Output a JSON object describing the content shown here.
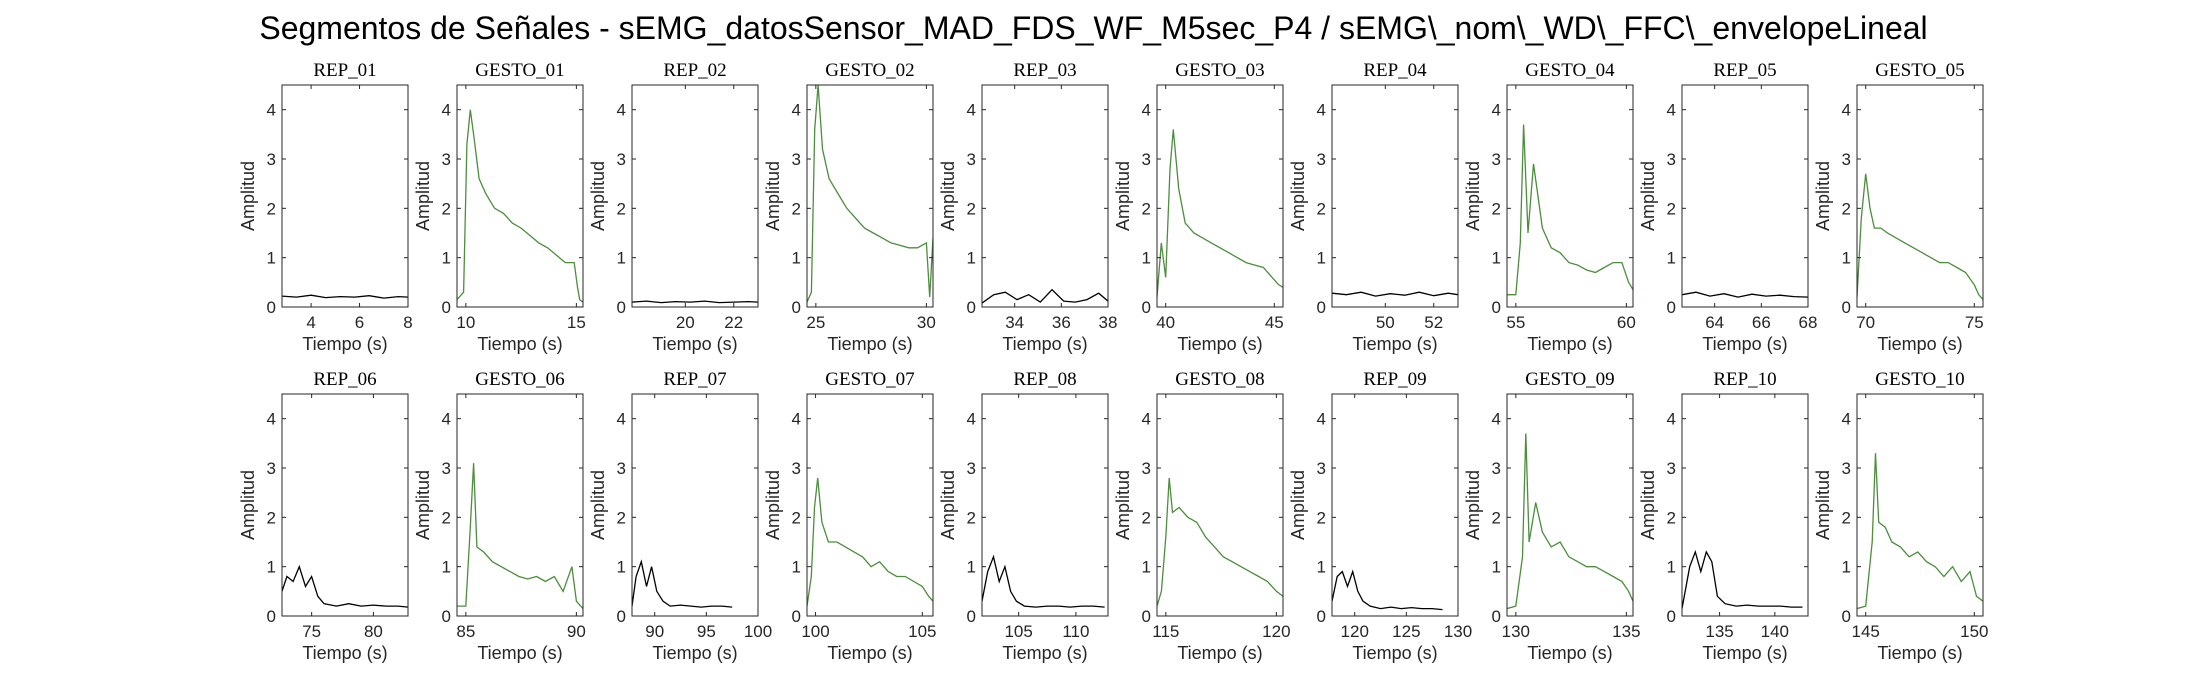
{
  "figure": {
    "title": "Segmentos de Señales - sEMG_datosSensor_MAD_FDS_WF_M5sec_P4 / sEMG\\_nom\\_WD\\_FFC\\_envelopeLineal"
  },
  "colors": {
    "rep": "#000000",
    "gesto": "#4b8e3b",
    "axis": "#262626"
  },
  "chart_data": [
    {
      "type": "line",
      "title": "REP_01",
      "xlabel": "Tiempo (s)",
      "ylabel": "Amplitud",
      "xlim": [
        2.8,
        8
      ],
      "ylim": [
        0,
        4.5
      ],
      "xticks": [
        4,
        6,
        8
      ],
      "yticks": [
        0,
        1,
        2,
        3,
        4
      ],
      "color_key": "rep",
      "x": [
        2.8,
        3.4,
        4.0,
        4.6,
        5.2,
        5.8,
        6.4,
        7.0,
        7.6,
        8.0
      ],
      "y": [
        0.22,
        0.2,
        0.24,
        0.19,
        0.21,
        0.2,
        0.23,
        0.18,
        0.21,
        0.2
      ]
    },
    {
      "type": "line",
      "title": "GESTO_01",
      "xlabel": "Tiempo (s)",
      "ylabel": "Amplitud",
      "xlim": [
        9.6,
        15.3
      ],
      "ylim": [
        0,
        4.5
      ],
      "xticks": [
        10,
        15
      ],
      "yticks": [
        0,
        1,
        2,
        3,
        4
      ],
      "color_key": "gesto",
      "x": [
        9.6,
        9.9,
        10.05,
        10.2,
        10.35,
        10.6,
        10.9,
        11.3,
        11.7,
        12.1,
        12.5,
        12.9,
        13.3,
        13.7,
        14.1,
        14.5,
        14.9,
        15.05,
        15.15,
        15.3
      ],
      "y": [
        0.15,
        0.3,
        3.3,
        4.0,
        3.5,
        2.6,
        2.3,
        2.0,
        1.9,
        1.7,
        1.6,
        1.45,
        1.3,
        1.2,
        1.05,
        0.9,
        0.9,
        0.4,
        0.15,
        0.1
      ]
    },
    {
      "type": "line",
      "title": "REP_02",
      "xlabel": "Tiempo (s)",
      "ylabel": "Amplitud",
      "xlim": [
        17.8,
        23
      ],
      "ylim": [
        0,
        4.5
      ],
      "xticks": [
        20,
        22
      ],
      "yticks": [
        0,
        1,
        2,
        3,
        4
      ],
      "color_key": "rep",
      "x": [
        17.8,
        18.4,
        19.0,
        19.6,
        20.2,
        20.8,
        21.4,
        22.0,
        22.6,
        23.0
      ],
      "y": [
        0.1,
        0.12,
        0.09,
        0.11,
        0.1,
        0.12,
        0.09,
        0.1,
        0.11,
        0.1
      ]
    },
    {
      "type": "line",
      "title": "GESTO_02",
      "xlabel": "Tiempo (s)",
      "ylabel": "Amplitud",
      "xlim": [
        24.6,
        30.3
      ],
      "ylim": [
        0,
        4.5
      ],
      "xticks": [
        25,
        30
      ],
      "yticks": [
        0,
        1,
        2,
        3,
        4
      ],
      "color_key": "gesto",
      "x": [
        24.6,
        24.8,
        24.95,
        25.1,
        25.3,
        25.6,
        26.0,
        26.4,
        26.8,
        27.2,
        27.6,
        28.0,
        28.4,
        28.8,
        29.2,
        29.6,
        30.0,
        30.15,
        30.3
      ],
      "y": [
        0.1,
        0.3,
        3.6,
        4.5,
        3.2,
        2.6,
        2.3,
        2.0,
        1.8,
        1.6,
        1.5,
        1.4,
        1.3,
        1.25,
        1.2,
        1.2,
        1.3,
        0.2,
        1.4
      ]
    },
    {
      "type": "line",
      "title": "REP_03",
      "xlabel": "Tiempo (s)",
      "ylabel": "Amplitud",
      "xlim": [
        32.6,
        38
      ],
      "ylim": [
        0,
        4.5
      ],
      "xticks": [
        34,
        36,
        38
      ],
      "yticks": [
        0,
        1,
        2,
        3,
        4
      ],
      "color_key": "rep",
      "x": [
        32.6,
        33.1,
        33.6,
        34.1,
        34.6,
        35.1,
        35.6,
        36.1,
        36.6,
        37.1,
        37.6,
        38.0
      ],
      "y": [
        0.08,
        0.25,
        0.3,
        0.15,
        0.25,
        0.1,
        0.35,
        0.12,
        0.1,
        0.15,
        0.28,
        0.12
      ]
    },
    {
      "type": "line",
      "title": "GESTO_03",
      "xlabel": "Tiempo (s)",
      "ylabel": "Amplitud",
      "xlim": [
        39.6,
        45.4
      ],
      "ylim": [
        0,
        4.5
      ],
      "xticks": [
        40,
        45
      ],
      "yticks": [
        0,
        1,
        2,
        3,
        4
      ],
      "color_key": "gesto",
      "x": [
        39.6,
        39.8,
        40.0,
        40.2,
        40.35,
        40.6,
        40.9,
        41.3,
        41.7,
        42.1,
        42.5,
        42.9,
        43.3,
        43.7,
        44.1,
        44.5,
        44.9,
        45.2,
        45.4
      ],
      "y": [
        0.2,
        1.3,
        0.6,
        2.8,
        3.6,
        2.4,
        1.7,
        1.5,
        1.4,
        1.3,
        1.2,
        1.1,
        1.0,
        0.9,
        0.85,
        0.8,
        0.6,
        0.45,
        0.4
      ]
    },
    {
      "type": "line",
      "title": "REP_04",
      "xlabel": "Tiempo (s)",
      "ylabel": "Amplitud",
      "xlim": [
        47.8,
        53
      ],
      "ylim": [
        0,
        4.5
      ],
      "xticks": [
        50,
        52
      ],
      "yticks": [
        0,
        1,
        2,
        3,
        4
      ],
      "color_key": "rep",
      "x": [
        47.8,
        48.4,
        49.0,
        49.6,
        50.2,
        50.8,
        51.4,
        52.0,
        52.6,
        53.0
      ],
      "y": [
        0.28,
        0.25,
        0.3,
        0.22,
        0.27,
        0.24,
        0.3,
        0.23,
        0.28,
        0.25
      ]
    },
    {
      "type": "line",
      "title": "GESTO_04",
      "xlabel": "Tiempo (s)",
      "ylabel": "Amplitud",
      "xlim": [
        54.6,
        60.3
      ],
      "ylim": [
        0,
        4.5
      ],
      "xticks": [
        55,
        60
      ],
      "yticks": [
        0,
        1,
        2,
        3,
        4
      ],
      "color_key": "gesto",
      "x": [
        54.6,
        55.0,
        55.2,
        55.35,
        55.55,
        55.8,
        56.2,
        56.6,
        57.0,
        57.4,
        57.8,
        58.2,
        58.6,
        59.0,
        59.4,
        59.8,
        60.1,
        60.3
      ],
      "y": [
        0.25,
        0.25,
        1.3,
        3.7,
        1.5,
        2.9,
        1.6,
        1.2,
        1.1,
        0.9,
        0.85,
        0.75,
        0.7,
        0.8,
        0.9,
        0.9,
        0.5,
        0.35
      ]
    },
    {
      "type": "line",
      "title": "REP_05",
      "xlabel": "Tiempo (s)",
      "ylabel": "Amplitud",
      "xlim": [
        62.6,
        68
      ],
      "ylim": [
        0,
        4.5
      ],
      "xticks": [
        64,
        66,
        68
      ],
      "yticks": [
        0,
        1,
        2,
        3,
        4
      ],
      "color_key": "rep",
      "x": [
        62.6,
        63.2,
        63.8,
        64.4,
        65.0,
        65.6,
        66.2,
        66.8,
        67.4,
        68.0
      ],
      "y": [
        0.25,
        0.3,
        0.22,
        0.27,
        0.2,
        0.26,
        0.22,
        0.24,
        0.21,
        0.2
      ]
    },
    {
      "type": "line",
      "title": "GESTO_05",
      "xlabel": "Tiempo (s)",
      "ylabel": "Amplitud",
      "xlim": [
        69.6,
        75.4
      ],
      "ylim": [
        0,
        4.5
      ],
      "xticks": [
        70,
        75
      ],
      "yticks": [
        0,
        1,
        2,
        3,
        4
      ],
      "color_key": "gesto",
      "x": [
        69.6,
        69.8,
        70.0,
        70.2,
        70.4,
        70.7,
        71.0,
        71.4,
        71.8,
        72.2,
        72.6,
        73.0,
        73.4,
        73.8,
        74.2,
        74.6,
        75.0,
        75.2,
        75.4
      ],
      "y": [
        0.2,
        1.8,
        2.7,
        2.0,
        1.6,
        1.6,
        1.5,
        1.4,
        1.3,
        1.2,
        1.1,
        1.0,
        0.9,
        0.9,
        0.8,
        0.7,
        0.45,
        0.25,
        0.15
      ]
    },
    {
      "type": "line",
      "title": "REP_06",
      "xlabel": "Tiempo (s)",
      "ylabel": "Amplitud",
      "xlim": [
        72.6,
        82.8
      ],
      "ylim": [
        0,
        4.5
      ],
      "xticks": [
        75,
        80
      ],
      "yticks": [
        0,
        1,
        2,
        3,
        4
      ],
      "color_key": "rep",
      "x": [
        72.6,
        73.0,
        73.5,
        74.0,
        74.5,
        75.0,
        75.5,
        76.0,
        77.0,
        78.0,
        79.0,
        80.0,
        81.0,
        82.0,
        82.8
      ],
      "y": [
        0.5,
        0.8,
        0.7,
        1.0,
        0.6,
        0.8,
        0.4,
        0.25,
        0.2,
        0.25,
        0.2,
        0.22,
        0.2,
        0.2,
        0.18
      ]
    },
    {
      "type": "line",
      "title": "GESTO_06",
      "xlabel": "Tiempo (s)",
      "ylabel": "Amplitud",
      "xlim": [
        84.6,
        90.3
      ],
      "ylim": [
        0,
        4.5
      ],
      "xticks": [
        85,
        90
      ],
      "yticks": [
        0,
        1,
        2,
        3,
        4
      ],
      "color_key": "gesto",
      "x": [
        84.6,
        85.0,
        85.2,
        85.35,
        85.5,
        85.8,
        86.2,
        86.6,
        87.0,
        87.4,
        87.8,
        88.2,
        88.6,
        89.0,
        89.4,
        89.8,
        90.0,
        90.3
      ],
      "y": [
        0.2,
        0.2,
        1.8,
        3.1,
        1.4,
        1.3,
        1.1,
        1.0,
        0.9,
        0.8,
        0.75,
        0.8,
        0.7,
        0.8,
        0.5,
        1.0,
        0.3,
        0.15
      ]
    },
    {
      "type": "line",
      "title": "REP_07",
      "xlabel": "Tiempo (s)",
      "ylabel": "Amplitud",
      "xlim": [
        87.8,
        100
      ],
      "ylim": [
        0,
        4.5
      ],
      "xticks": [
        90,
        95,
        100
      ],
      "yticks": [
        0,
        1,
        2,
        3,
        4
      ],
      "color_key": "rep",
      "x": [
        87.8,
        88.2,
        88.7,
        89.2,
        89.7,
        90.2,
        90.8,
        91.5,
        92.5,
        93.5,
        94.5,
        95.5,
        96.5,
        97.5
      ],
      "y": [
        0.2,
        0.8,
        1.1,
        0.6,
        1.0,
        0.5,
        0.3,
        0.2,
        0.22,
        0.2,
        0.18,
        0.2,
        0.2,
        0.18
      ]
    },
    {
      "type": "line",
      "title": "GESTO_07",
      "xlabel": "Tiempo (s)",
      "ylabel": "Amplitud",
      "xlim": [
        99.6,
        105.5
      ],
      "ylim": [
        0,
        4.5
      ],
      "xticks": [
        100,
        105
      ],
      "yticks": [
        0,
        1,
        2,
        3,
        4
      ],
      "color_key": "gesto",
      "x": [
        99.6,
        99.8,
        99.95,
        100.1,
        100.3,
        100.6,
        101.0,
        101.4,
        101.8,
        102.2,
        102.6,
        103.0,
        103.4,
        103.8,
        104.2,
        104.6,
        105.0,
        105.3,
        105.5
      ],
      "y": [
        0.2,
        0.8,
        2.2,
        2.8,
        1.9,
        1.5,
        1.5,
        1.4,
        1.3,
        1.2,
        1.0,
        1.1,
        0.9,
        0.8,
        0.8,
        0.7,
        0.6,
        0.4,
        0.3
      ]
    },
    {
      "type": "line",
      "title": "REP_08",
      "xlabel": "Tiempo (s)",
      "ylabel": "Amplitud",
      "xlim": [
        101.8,
        112.8
      ],
      "ylim": [
        0,
        4.5
      ],
      "xticks": [
        105,
        110
      ],
      "yticks": [
        0,
        1,
        2,
        3,
        4
      ],
      "color_key": "rep",
      "x": [
        101.8,
        102.3,
        102.8,
        103.3,
        103.8,
        104.3,
        104.8,
        105.5,
        106.5,
        107.5,
        108.5,
        109.5,
        110.5,
        111.5,
        112.5
      ],
      "y": [
        0.3,
        0.9,
        1.2,
        0.7,
        1.0,
        0.5,
        0.3,
        0.2,
        0.18,
        0.2,
        0.2,
        0.18,
        0.2,
        0.2,
        0.18
      ]
    },
    {
      "type": "line",
      "title": "GESTO_08",
      "xlabel": "Tiempo (s)",
      "ylabel": "Amplitud",
      "xlim": [
        114.6,
        120.3
      ],
      "ylim": [
        0,
        4.5
      ],
      "xticks": [
        115,
        120
      ],
      "yticks": [
        0,
        1,
        2,
        3,
        4
      ],
      "color_key": "gesto",
      "x": [
        114.6,
        114.8,
        115.0,
        115.15,
        115.3,
        115.6,
        116.0,
        116.4,
        116.8,
        117.2,
        117.6,
        118.0,
        118.4,
        118.8,
        119.2,
        119.6,
        120.0,
        120.3
      ],
      "y": [
        0.2,
        0.5,
        1.6,
        2.8,
        2.1,
        2.2,
        2.0,
        1.9,
        1.6,
        1.4,
        1.2,
        1.1,
        1.0,
        0.9,
        0.8,
        0.7,
        0.5,
        0.4
      ]
    },
    {
      "type": "line",
      "title": "REP_09",
      "xlabel": "Tiempo (s)",
      "ylabel": "Amplitud",
      "xlim": [
        117.8,
        130
      ],
      "ylim": [
        0,
        4.5
      ],
      "xticks": [
        120,
        125,
        130
      ],
      "yticks": [
        0,
        1,
        2,
        3,
        4
      ],
      "color_key": "rep",
      "x": [
        117.8,
        118.3,
        118.8,
        119.3,
        119.8,
        120.3,
        120.8,
        121.5,
        122.5,
        123.5,
        124.5,
        125.5,
        126.5,
        127.5,
        128.5
      ],
      "y": [
        0.3,
        0.8,
        0.9,
        0.6,
        0.9,
        0.5,
        0.3,
        0.2,
        0.15,
        0.18,
        0.15,
        0.17,
        0.15,
        0.15,
        0.13
      ]
    },
    {
      "type": "line",
      "title": "GESTO_09",
      "xlabel": "Tiempo (s)",
      "ylabel": "Amplitud",
      "xlim": [
        129.6,
        135.3
      ],
      "ylim": [
        0,
        4.5
      ],
      "xticks": [
        130,
        135
      ],
      "yticks": [
        0,
        1,
        2,
        3,
        4
      ],
      "color_key": "gesto",
      "x": [
        129.6,
        130.0,
        130.3,
        130.45,
        130.6,
        130.9,
        131.2,
        131.6,
        132.0,
        132.4,
        132.8,
        133.2,
        133.6,
        134.0,
        134.4,
        134.8,
        135.1,
        135.3
      ],
      "y": [
        0.15,
        0.2,
        1.2,
        3.7,
        1.5,
        2.3,
        1.7,
        1.4,
        1.5,
        1.2,
        1.1,
        1.0,
        1.0,
        0.9,
        0.8,
        0.7,
        0.5,
        0.3
      ]
    },
    {
      "type": "line",
      "title": "REP_10",
      "xlabel": "Tiempo (s)",
      "ylabel": "Amplitud",
      "xlim": [
        131.6,
        143
      ],
      "ylim": [
        0,
        4.5
      ],
      "xticks": [
        135,
        140
      ],
      "yticks": [
        0,
        1,
        2,
        3,
        4
      ],
      "color_key": "rep",
      "x": [
        131.6,
        132.3,
        132.8,
        133.3,
        133.8,
        134.3,
        134.8,
        135.5,
        136.5,
        137.5,
        138.5,
        139.5,
        140.5,
        141.5,
        142.5
      ],
      "y": [
        0.15,
        1.0,
        1.3,
        0.9,
        1.3,
        1.1,
        0.4,
        0.25,
        0.2,
        0.22,
        0.2,
        0.2,
        0.2,
        0.18,
        0.18
      ]
    },
    {
      "type": "line",
      "title": "GESTO_10",
      "xlabel": "Tiempo (s)",
      "ylabel": "Amplitud",
      "xlim": [
        144.6,
        150.4
      ],
      "ylim": [
        0,
        4.5
      ],
      "xticks": [
        145,
        150
      ],
      "yticks": [
        0,
        1,
        2,
        3,
        4
      ],
      "color_key": "gesto",
      "x": [
        144.6,
        145.0,
        145.3,
        145.45,
        145.6,
        145.9,
        146.2,
        146.6,
        147.0,
        147.4,
        147.8,
        148.2,
        148.6,
        149.0,
        149.4,
        149.8,
        150.1,
        150.4
      ],
      "y": [
        0.15,
        0.2,
        1.5,
        3.3,
        1.9,
        1.8,
        1.5,
        1.4,
        1.2,
        1.3,
        1.1,
        1.0,
        0.8,
        1.0,
        0.7,
        0.9,
        0.4,
        0.3
      ]
    }
  ]
}
